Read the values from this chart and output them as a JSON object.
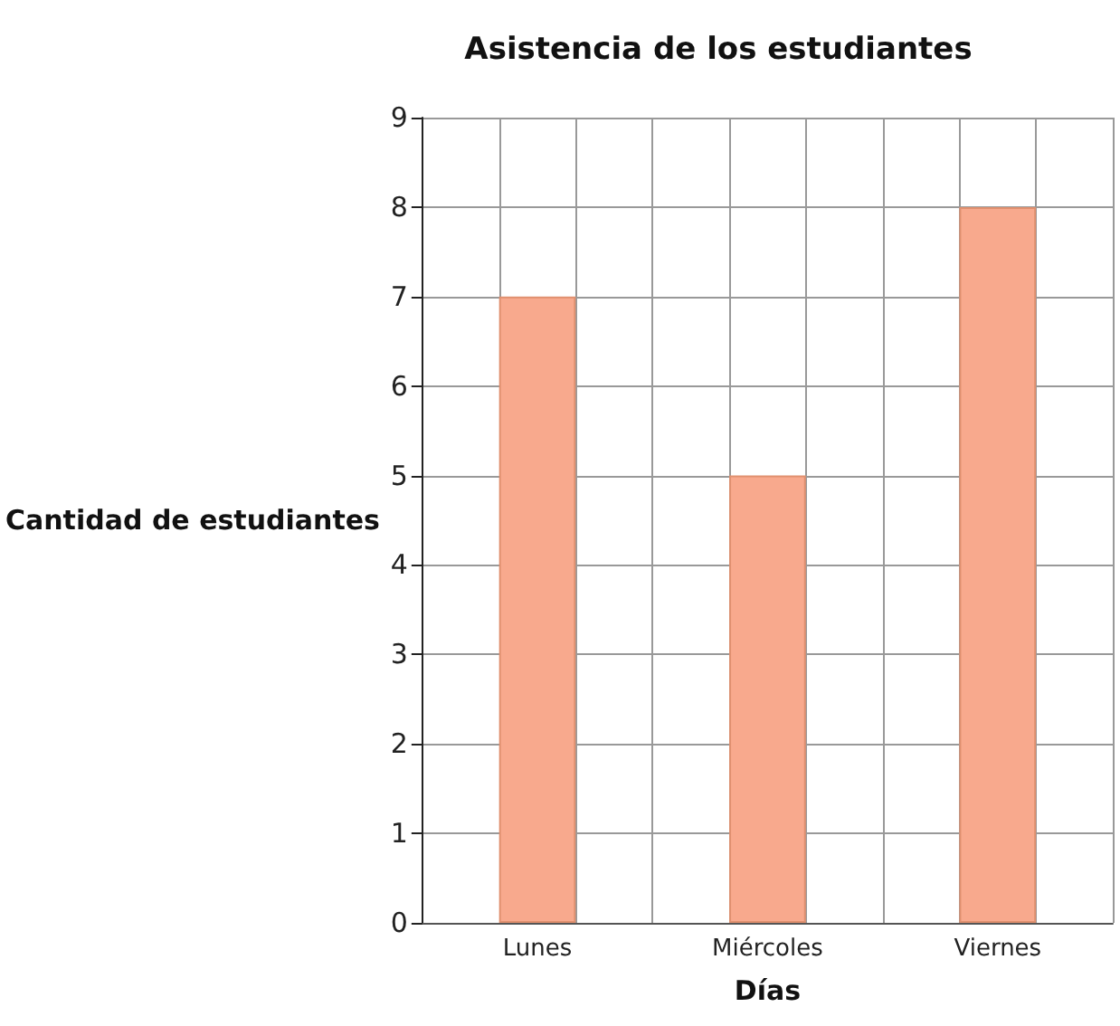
{
  "chart_data": {
    "type": "bar",
    "title": "Asistencia de los estudiantes",
    "xlabel": "Días",
    "ylabel": "Cantidad de estudiantes",
    "categories": [
      "Lunes",
      "Miércoles",
      "Viernes"
    ],
    "values": [
      7,
      5,
      8
    ],
    "color": "#f8a98d",
    "ylim": [
      0,
      9
    ],
    "yticks": [
      0,
      1,
      2,
      3,
      4,
      5,
      6,
      7,
      8,
      9
    ],
    "grid": true
  }
}
